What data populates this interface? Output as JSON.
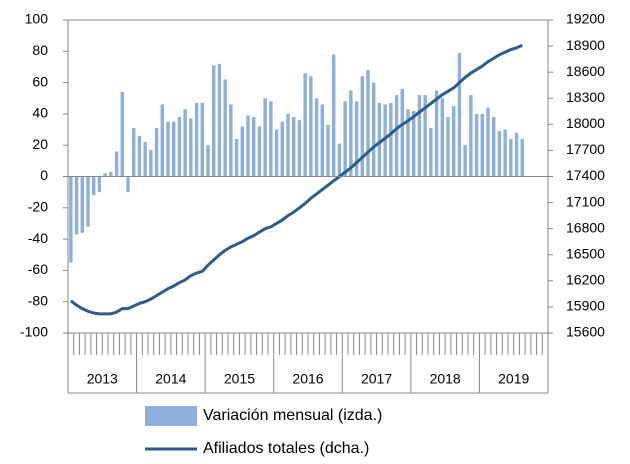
{
  "chart_data": {
    "type": "bar-line",
    "x_groups": [
      "2013",
      "2014",
      "2015",
      "2016",
      "2017",
      "2018",
      "2019"
    ],
    "categories": [
      null,
      null,
      null,
      null,
      null,
      null,
      null,
      null,
      null,
      null,
      null,
      null,
      null,
      null,
      null,
      null,
      null,
      null,
      null,
      null,
      null,
      null,
      null,
      null,
      null,
      null,
      null,
      null,
      null,
      null,
      null,
      null,
      null,
      null,
      null,
      null,
      null,
      null,
      null,
      null,
      null,
      null,
      null,
      null,
      null,
      null,
      null,
      null,
      null,
      null,
      null,
      null,
      null,
      null,
      null,
      null,
      null,
      null,
      null,
      null,
      null,
      null,
      null,
      null,
      null,
      null,
      null,
      null,
      null,
      null,
      null,
      null,
      null,
      null,
      null,
      null,
      null,
      null,
      null,
      null,
      null,
      null,
      null,
      null
    ],
    "series": [
      {
        "name": "Variación mensual (izda.)",
        "type": "bar",
        "axis": "y",
        "color": "#8eb0da",
        "values": [
          -55,
          -37,
          -36,
          -32,
          -12,
          -10,
          2,
          3,
          16,
          54,
          -10,
          31,
          26,
          22,
          17,
          31,
          46,
          35,
          35,
          38,
          43,
          37,
          47,
          47,
          20,
          71,
          72,
          62,
          46,
          24,
          32,
          39,
          38,
          32,
          50,
          48,
          30,
          35,
          40,
          38,
          36,
          66,
          64,
          50,
          46,
          33,
          78,
          21,
          48,
          55,
          48,
          64,
          68,
          60,
          47,
          46,
          47,
          52,
          56,
          43,
          42,
          52,
          52,
          31,
          55,
          50,
          38,
          45,
          79,
          20,
          52,
          40,
          40,
          44,
          38,
          29,
          30,
          24,
          28,
          24,
          null,
          null,
          null,
          null
        ]
      },
      {
        "name": "Afiliados totales (dcha.)",
        "type": "line",
        "axis": "y2",
        "color": "#2f5b8c",
        "values": [
          15970,
          15920,
          15880,
          15850,
          15830,
          15820,
          15820,
          15820,
          15840,
          15880,
          15880,
          15910,
          15940,
          15960,
          15990,
          16030,
          16070,
          16110,
          16140,
          16180,
          16210,
          16260,
          16290,
          16310,
          16380,
          16440,
          16500,
          16550,
          16590,
          16620,
          16650,
          16690,
          16720,
          16760,
          16800,
          16820,
          16860,
          16900,
          16950,
          16990,
          17040,
          17090,
          17150,
          17200,
          17250,
          17300,
          17350,
          17400,
          17450,
          17500,
          17560,
          17620,
          17680,
          17740,
          17790,
          17840,
          17890,
          17950,
          18000,
          18040,
          18090,
          18140,
          18190,
          18240,
          18290,
          18340,
          18380,
          18420,
          18480,
          18540,
          18590,
          18630,
          18670,
          18720,
          18760,
          18800,
          18830,
          18860,
          18880,
          18910,
          null,
          null,
          null,
          null
        ]
      }
    ],
    "ylim": [
      -100,
      100
    ],
    "yticks": [
      -100,
      -80,
      -60,
      -40,
      -20,
      0,
      20,
      40,
      60,
      80,
      100
    ],
    "y2lim": [
      15600,
      19200
    ],
    "y2ticks": [
      15600,
      15900,
      16200,
      16500,
      16800,
      17100,
      17400,
      17700,
      18000,
      18300,
      18600,
      18900,
      19200
    ],
    "legend": "bottom"
  }
}
